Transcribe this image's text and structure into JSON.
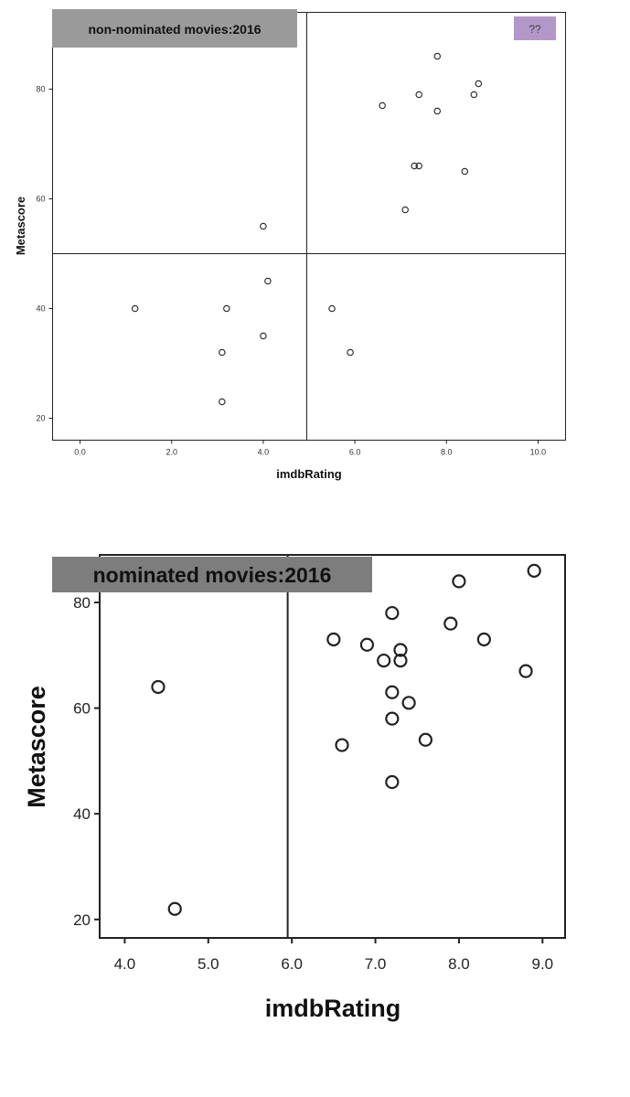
{
  "chart_data": [
    {
      "type": "scatter",
      "title": "non-nominated movies:2016",
      "badge": "??",
      "badge_color": "#b497c9",
      "title_bg": "#9a9a9a",
      "xlabel": "imdbRating",
      "ylabel": "Metascore",
      "xlim": [
        -0.6,
        10.6
      ],
      "ylim": [
        16,
        94
      ],
      "xticks": [
        0,
        2,
        4,
        6,
        8,
        10
      ],
      "xtick_labels": [
        "0.0",
        "2.0",
        "4.0",
        "6.0",
        "8.0",
        "10.0"
      ],
      "yticks": [
        20,
        40,
        60,
        80
      ],
      "ytick_labels": [
        "20",
        "40",
        "60",
        "80"
      ],
      "reference_lines": {
        "x": 4.95,
        "y": 50
      },
      "grid": false,
      "points": [
        {
          "x": 7.8,
          "y": 86
        },
        {
          "x": 8.7,
          "y": 81
        },
        {
          "x": 7.4,
          "y": 79
        },
        {
          "x": 8.6,
          "y": 79
        },
        {
          "x": 6.6,
          "y": 77
        },
        {
          "x": 7.8,
          "y": 76
        },
        {
          "x": 7.3,
          "y": 66
        },
        {
          "x": 7.4,
          "y": 66
        },
        {
          "x": 8.4,
          "y": 65
        },
        {
          "x": 7.1,
          "y": 58
        },
        {
          "x": 4.0,
          "y": 55
        },
        {
          "x": 4.1,
          "y": 45
        },
        {
          "x": 1.2,
          "y": 40
        },
        {
          "x": 3.2,
          "y": 40
        },
        {
          "x": 5.5,
          "y": 40
        },
        {
          "x": 4.0,
          "y": 35
        },
        {
          "x": 3.1,
          "y": 32
        },
        {
          "x": 5.9,
          "y": 32
        },
        {
          "x": 3.1,
          "y": 23
        }
      ]
    },
    {
      "type": "scatter",
      "title": "nominated movies:2016",
      "title_bg": "#7d7d7d",
      "xlabel": "imdbRating",
      "ylabel": "Metascore",
      "xlim": [
        3.7,
        9.27
      ],
      "ylim": [
        16.5,
        89
      ],
      "xticks": [
        4,
        5,
        6,
        7,
        8,
        9
      ],
      "xtick_labels": [
        "4.0",
        "5.0",
        "6.0",
        "7.0",
        "8.0",
        "9.0"
      ],
      "yticks": [
        20,
        40,
        60,
        80
      ],
      "ytick_labels": [
        "20",
        "40",
        "60",
        "80"
      ],
      "reference_lines": {
        "x": 5.95
      },
      "grid": false,
      "points": [
        {
          "x": 8.9,
          "y": 86
        },
        {
          "x": 8.0,
          "y": 84
        },
        {
          "x": 7.2,
          "y": 78
        },
        {
          "x": 7.9,
          "y": 76
        },
        {
          "x": 6.5,
          "y": 73
        },
        {
          "x": 8.3,
          "y": 73
        },
        {
          "x": 6.9,
          "y": 72
        },
        {
          "x": 7.3,
          "y": 71
        },
        {
          "x": 7.1,
          "y": 69
        },
        {
          "x": 7.3,
          "y": 69
        },
        {
          "x": 8.8,
          "y": 67
        },
        {
          "x": 4.4,
          "y": 64
        },
        {
          "x": 7.2,
          "y": 63
        },
        {
          "x": 7.4,
          "y": 61
        },
        {
          "x": 7.2,
          "y": 58
        },
        {
          "x": 7.6,
          "y": 54
        },
        {
          "x": 6.6,
          "y": 53
        },
        {
          "x": 7.2,
          "y": 46
        },
        {
          "x": 4.6,
          "y": 22
        }
      ]
    }
  ]
}
